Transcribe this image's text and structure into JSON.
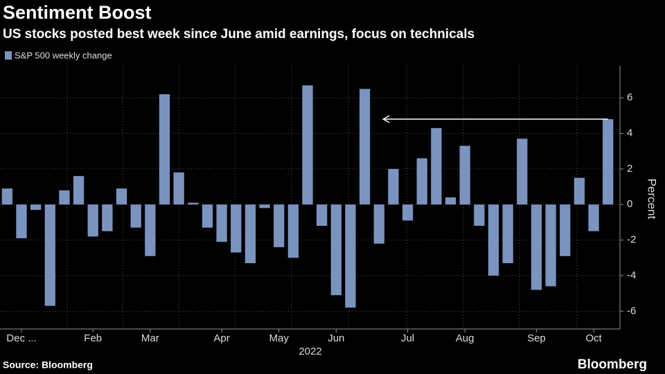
{
  "chart_data": {
    "type": "bar",
    "title": "Sentiment Boost",
    "subtitle": "US stocks posted best week since June amid earnings, focus on technicals",
    "categories": [
      null,
      "Dec ...",
      null,
      null,
      null,
      null,
      "Feb",
      null,
      null,
      null,
      "Mar",
      null,
      null,
      null,
      null,
      "Apr",
      null,
      null,
      null,
      "May",
      null,
      null,
      null,
      "Jun",
      null,
      null,
      null,
      null,
      "Jul",
      null,
      null,
      null,
      "Aug",
      null,
      null,
      null,
      null,
      "Sep",
      null,
      null,
      null,
      "Oct",
      null
    ],
    "series": [
      {
        "name": "S&P 500 weekly change",
        "color": "#7b93bf",
        "values": [
          0.9,
          -1.9,
          -0.3,
          -5.7,
          0.8,
          1.6,
          -1.8,
          -1.5,
          0.9,
          -1.3,
          -2.9,
          6.2,
          1.8,
          0.1,
          -1.3,
          -2.1,
          -2.7,
          -3.3,
          -0.2,
          -2.4,
          -3.0,
          6.7,
          -1.2,
          -5.1,
          -5.8,
          6.5,
          -2.2,
          2.0,
          -0.9,
          2.6,
          4.3,
          0.4,
          3.3,
          -1.2,
          -4.0,
          -3.3,
          3.7,
          -4.8,
          -4.6,
          -2.9,
          1.5,
          -1.5,
          4.8
        ]
      }
    ],
    "xlabel": "2022",
    "ylabel": "Percent",
    "ylim": [
      -7,
      7.8
    ],
    "yticks": [
      -6,
      -4,
      -2,
      0,
      2,
      4,
      6
    ],
    "grid": true,
    "source": "Source: Bloomberg",
    "brand": "Bloomberg"
  }
}
